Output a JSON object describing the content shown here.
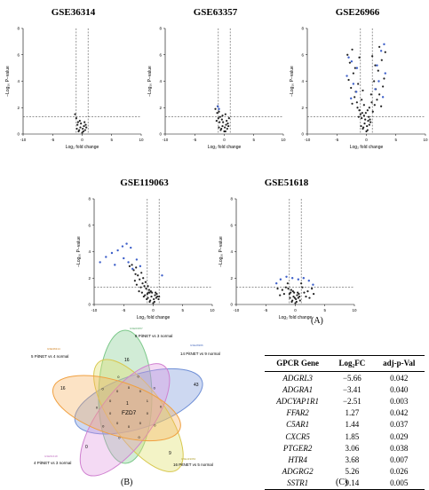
{
  "labels": {
    "panel_a": "(A)",
    "panel_b": "(B)",
    "panel_c": "(C)"
  },
  "chart_data": [
    {
      "type": "scatter",
      "title": "GSE36314",
      "xlabel": "Log₂ fold change",
      "ylabel": "−Log₁₀ P−value",
      "xlim": [
        -10,
        10
      ],
      "ylim": [
        0,
        8
      ],
      "xticks": [
        "-10",
        "-5",
        "0",
        "5",
        "10"
      ],
      "yticks": [
        "0",
        "2",
        "4",
        "6",
        "8"
      ],
      "points": [
        [
          -0.5,
          0.3
        ],
        [
          -0.3,
          0.5
        ],
        [
          0.1,
          0.4
        ],
        [
          -0.8,
          0.7
        ],
        [
          0.3,
          0.6
        ],
        [
          -0.6,
          0.2
        ],
        [
          0.5,
          0.3
        ],
        [
          -1.2,
          1.5
        ],
        [
          -1.0,
          1.2
        ],
        [
          -0.2,
          0.8
        ],
        [
          0.2,
          0.2
        ],
        [
          -0.4,
          1.0
        ],
        [
          0.4,
          0.9
        ],
        [
          -0.9,
          0.4
        ],
        [
          0.7,
          0.5
        ],
        [
          0.0,
          0.1
        ],
        [
          -0.7,
          0.9
        ],
        [
          0.6,
          0.7
        ]
      ],
      "labeled": []
    },
    {
      "type": "scatter",
      "title": "GSE63357",
      "xlabel": "Log₂ fold change",
      "ylabel": "−Log₁₀ P−value",
      "xlim": [
        -10,
        10
      ],
      "ylim": [
        0,
        8
      ],
      "xticks": [
        "-10",
        "-5",
        "0",
        "5",
        "10"
      ],
      "yticks": [
        "0",
        "2",
        "4",
        "6",
        "8"
      ],
      "points": [
        [
          -0.5,
          0.4
        ],
        [
          -0.3,
          0.6
        ],
        [
          0.1,
          0.5
        ],
        [
          -0.8,
          0.9
        ],
        [
          0.3,
          0.7
        ],
        [
          -0.6,
          0.3
        ],
        [
          0.5,
          0.4
        ],
        [
          -1.2,
          1.6
        ],
        [
          -1.0,
          1.2
        ],
        [
          -0.2,
          0.9
        ],
        [
          0.2,
          0.2
        ],
        [
          -0.4,
          1.1
        ],
        [
          0.4,
          1.0
        ],
        [
          -0.9,
          0.5
        ],
        [
          0.7,
          0.6
        ],
        [
          0.0,
          0.2
        ],
        [
          -0.7,
          1.3
        ],
        [
          0.6,
          0.8
        ],
        [
          -1.5,
          1.9
        ],
        [
          -1.1,
          2.1
        ],
        [
          -0.9,
          1.7
        ],
        [
          -0.3,
          1.4
        ],
        [
          0.8,
          1.2
        ],
        [
          -1.3,
          1.0
        ],
        [
          0.2,
          1.5
        ]
      ],
      "labeled": [
        [
          -1.1,
          2.1
        ],
        [
          -0.9,
          1.9
        ]
      ]
    },
    {
      "type": "scatter",
      "title": "GSE26966",
      "xlabel": "Log₂ fold change",
      "ylabel": "−Log₁₀ P−value",
      "xlim": [
        -10,
        10
      ],
      "ylim": [
        0,
        8
      ],
      "xticks": [
        "-10",
        "-5",
        "0",
        "5",
        "10"
      ],
      "yticks": [
        "0",
        "2",
        "4",
        "6",
        "8"
      ],
      "points": [
        [
          -0.5,
          0.5
        ],
        [
          -0.3,
          0.8
        ],
        [
          0.1,
          0.6
        ],
        [
          -0.8,
          1.2
        ],
        [
          0.3,
          1.0
        ],
        [
          -0.6,
          0.4
        ],
        [
          0.5,
          0.7
        ],
        [
          -1.2,
          1.8
        ],
        [
          -1.0,
          1.5
        ],
        [
          -0.2,
          1.1
        ],
        [
          0.2,
          0.3
        ],
        [
          -0.4,
          1.4
        ],
        [
          0.4,
          1.3
        ],
        [
          -0.9,
          0.6
        ],
        [
          0.7,
          0.9
        ],
        [
          0.0,
          0.2
        ],
        [
          -0.7,
          1.6
        ],
        [
          0.6,
          1.1
        ],
        [
          -1.5,
          2.0
        ],
        [
          1.4,
          2.2
        ],
        [
          1.8,
          2.6
        ],
        [
          -1.6,
          2.4
        ],
        [
          1.1,
          1.7
        ],
        [
          -1.3,
          1.3
        ],
        [
          2.2,
          3.0
        ],
        [
          -2.0,
          2.8
        ],
        [
          1.6,
          3.4
        ],
        [
          -1.8,
          3.2
        ],
        [
          2.5,
          2.1
        ],
        [
          -2.4,
          2.3
        ],
        [
          1.3,
          4.0
        ],
        [
          -1.4,
          3.8
        ],
        [
          2.8,
          3.6
        ],
        [
          -2.6,
          3.5
        ],
        [
          0.9,
          2.4
        ],
        [
          -0.8,
          2.6
        ],
        [
          3.0,
          4.2
        ],
        [
          -3.0,
          4.1
        ],
        [
          2.0,
          4.8
        ],
        [
          -2.2,
          4.6
        ],
        [
          1.5,
          5.2
        ],
        [
          -1.9,
          5.0
        ],
        [
          2.6,
          5.6
        ],
        [
          -2.8,
          5.4
        ],
        [
          1.0,
          5.9
        ],
        [
          -1.2,
          5.8
        ],
        [
          3.2,
          6.2
        ],
        [
          -3.2,
          6.0
        ],
        [
          2.2,
          6.6
        ],
        [
          -2.4,
          6.4
        ],
        [
          0.8,
          3.0
        ],
        [
          -0.6,
          3.3
        ],
        [
          0.5,
          2.0
        ],
        [
          -0.4,
          2.2
        ],
        [
          0.2,
          1.8
        ],
        [
          -0.1,
          1.6
        ]
      ],
      "labeled": [
        [
          3.0,
          6.8
        ],
        [
          2.5,
          6.3
        ],
        [
          -3.0,
          5.8
        ],
        [
          -2.5,
          5.5
        ],
        [
          1.8,
          5.2
        ],
        [
          -1.6,
          5.0
        ],
        [
          3.2,
          4.6
        ],
        [
          -3.3,
          4.4
        ],
        [
          2.1,
          4.0
        ],
        [
          -2.2,
          3.8
        ],
        [
          1.5,
          3.4
        ],
        [
          -1.7,
          3.2
        ],
        [
          2.8,
          2.8
        ],
        [
          -2.6,
          2.7
        ]
      ]
    },
    {
      "type": "scatter",
      "title": "GSE119063",
      "xlabel": "Log₂ fold change",
      "ylabel": "−Log₁₀ P−value",
      "xlim": [
        -10,
        10
      ],
      "ylim": [
        0,
        8
      ],
      "xticks": [
        "-10",
        "-5",
        "0",
        "5",
        "10"
      ],
      "yticks": [
        "0",
        "2",
        "4",
        "6",
        "8"
      ],
      "points": [
        [
          -0.5,
          0.3
        ],
        [
          -0.3,
          0.6
        ],
        [
          0.1,
          0.4
        ],
        [
          -0.8,
          0.9
        ],
        [
          0.3,
          0.7
        ],
        [
          -0.6,
          0.2
        ],
        [
          0.5,
          0.5
        ],
        [
          -1.2,
          1.2
        ],
        [
          -1.0,
          0.8
        ],
        [
          -0.2,
          0.9
        ],
        [
          0.2,
          0.2
        ],
        [
          -0.4,
          1.0
        ],
        [
          0.4,
          0.9
        ],
        [
          -0.9,
          0.5
        ],
        [
          0.7,
          0.6
        ],
        [
          0.0,
          0.1
        ],
        [
          -0.7,
          1.1
        ],
        [
          0.6,
          0.8
        ],
        [
          -1.5,
          1.4
        ],
        [
          -1.8,
          1.6
        ],
        [
          -2.1,
          1.3
        ],
        [
          -1.4,
          0.7
        ],
        [
          -1.1,
          0.4
        ],
        [
          -2.3,
          1.9
        ],
        [
          -2.6,
          2.2
        ],
        [
          -2.0,
          2.4
        ],
        [
          -1.7,
          2.0
        ],
        [
          -3.0,
          2.3
        ],
        [
          -3.3,
          2.6
        ],
        [
          -2.9,
          2.8
        ],
        [
          -3.6,
          3.0
        ],
        [
          -4.0,
          2.9
        ],
        [
          -2.4,
          1.0
        ],
        [
          -2.8,
          1.5
        ],
        [
          -1.9,
          0.9
        ],
        [
          -1.3,
          1.7
        ],
        [
          -3.1,
          1.8
        ],
        [
          -0.9,
          1.4
        ],
        [
          -1.6,
          0.6
        ],
        [
          -0.6,
          0.9
        ],
        [
          0.9,
          0.4
        ],
        [
          1.0,
          0.6
        ]
      ],
      "labeled": [
        [
          -9.0,
          3.2
        ],
        [
          -8.0,
          3.6
        ],
        [
          -7.0,
          3.9
        ],
        [
          -6.0,
          4.1
        ],
        [
          -5.2,
          4.4
        ],
        [
          -4.5,
          4.6
        ],
        [
          -3.8,
          4.3
        ],
        [
          -5.0,
          3.5
        ],
        [
          -4.2,
          3.2
        ],
        [
          -6.5,
          3.0
        ],
        [
          -3.5,
          2.7
        ],
        [
          -2.8,
          3.4
        ],
        [
          -2.2,
          2.9
        ],
        [
          1.5,
          2.2
        ]
      ]
    },
    {
      "type": "scatter",
      "title": "GSE51618",
      "xlabel": "Log₂ fold change",
      "ylabel": "−Log₁₀ P−value",
      "xlim": [
        -10,
        10
      ],
      "ylim": [
        0,
        8
      ],
      "xticks": [
        "-10",
        "-5",
        "0",
        "5",
        "10"
      ],
      "yticks": [
        "0",
        "2",
        "4",
        "6",
        "8"
      ],
      "points": [
        [
          -0.5,
          0.3
        ],
        [
          -0.3,
          0.6
        ],
        [
          0.1,
          0.4
        ],
        [
          -0.8,
          0.9
        ],
        [
          0.3,
          0.7
        ],
        [
          -0.6,
          0.2
        ],
        [
          0.5,
          0.5
        ],
        [
          -1.2,
          1.2
        ],
        [
          -1.0,
          0.8
        ],
        [
          -0.2,
          0.9
        ],
        [
          0.2,
          0.2
        ],
        [
          -0.4,
          1.0
        ],
        [
          0.4,
          0.9
        ],
        [
          -0.9,
          0.5
        ],
        [
          0.7,
          0.6
        ],
        [
          0.0,
          0.1
        ],
        [
          -0.7,
          1.1
        ],
        [
          0.6,
          0.8
        ],
        [
          1.2,
          1.3
        ],
        [
          1.5,
          0.9
        ],
        [
          1.8,
          0.6
        ],
        [
          2.1,
          1.0
        ],
        [
          2.4,
          0.5
        ],
        [
          -1.6,
          1.3
        ],
        [
          -1.9,
          0.8
        ],
        [
          -2.2,
          1.1
        ],
        [
          -2.6,
          0.7
        ],
        [
          -3.0,
          1.2
        ],
        [
          1.0,
          1.6
        ],
        [
          -1.3,
          1.6
        ],
        [
          2.8,
          1.2
        ],
        [
          3.1,
          0.8
        ],
        [
          0.8,
          0.3
        ],
        [
          -0.1,
          0.5
        ]
      ],
      "labeled": [
        [
          -2.5,
          1.9
        ],
        [
          -1.5,
          2.1
        ],
        [
          -0.5,
          2.0
        ],
        [
          0.5,
          1.9
        ],
        [
          1.4,
          2.0
        ],
        [
          2.3,
          1.8
        ],
        [
          -3.2,
          1.6
        ],
        [
          3.0,
          1.5
        ]
      ]
    }
  ],
  "venn": {
    "sets": [
      {
        "label": "8 PitNET vs 3 normal",
        "dataset": "GSE63357",
        "count": "16",
        "color": "#7cc88a"
      },
      {
        "label": "14 PitNET vs 9 normal",
        "dataset": "GSE26966",
        "count": "43",
        "color": "#6f8fd6"
      },
      {
        "label": "16 PitNET vs 5 normal",
        "dataset": "GSE119063",
        "count": "9",
        "color": "#e0e070"
      },
      {
        "label": "4 PitNET vs 3 normal",
        "dataset": "GSE51618",
        "count": "0",
        "color": "#e095e0"
      },
      {
        "label": "5 PitNET vs 4 normal",
        "dataset": "GSE36314",
        "count": "16",
        "color": "#f5b05a"
      }
    ],
    "center_count": "1",
    "center_gene": "FZD7",
    "inner_counts": [
      "0",
      "0",
      "0",
      "0",
      "0",
      "0",
      "0",
      "0",
      "0",
      "0",
      "0",
      "0",
      "1",
      "0",
      "0",
      "0",
      "0",
      "0",
      "0",
      "0"
    ]
  },
  "table": {
    "headers": [
      "GPCR Gene",
      "Log₂FC",
      "adj-p-Val"
    ],
    "rows": [
      [
        "ADGRL3",
        "−5.66",
        "0.042"
      ],
      [
        "ADGRA1",
        "−3.41",
        "0.040"
      ],
      [
        "ADCYAP1R1",
        "−2.51",
        "0.003"
      ],
      [
        "FFAR2",
        "1.27",
        "0.042"
      ],
      [
        "C5AR1",
        "1.44",
        "0.037"
      ],
      [
        "CXCR5",
        "1.85",
        "0.029"
      ],
      [
        "PTGER2",
        "3.06",
        "0.038"
      ],
      [
        "HTR4",
        "3.68",
        "0.007"
      ],
      [
        "ADGRG2",
        "5.26",
        "0.026"
      ],
      [
        "SSTR1",
        "9.14",
        "0.005"
      ]
    ]
  }
}
